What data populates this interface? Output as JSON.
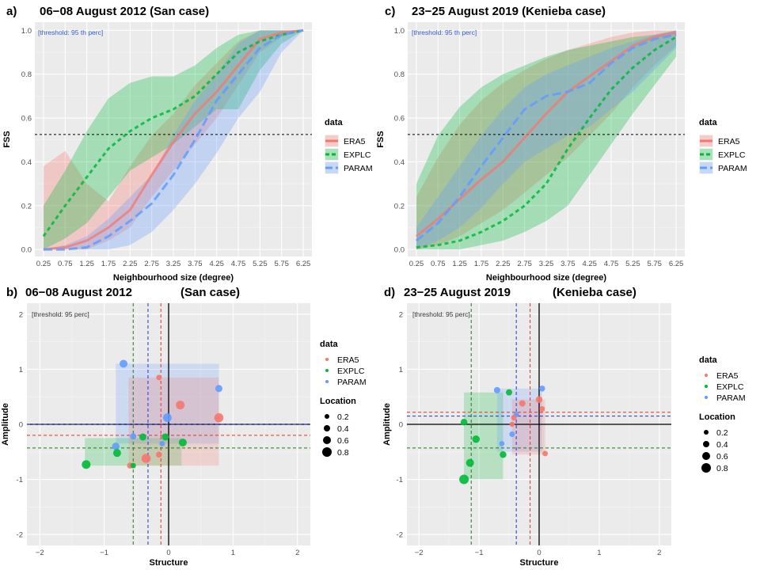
{
  "colors": {
    "ERA5": "#F8766D",
    "EXPLC": "#00BA38",
    "PARAM": "#619CFF",
    "panel": "#EBEBEB",
    "grid": "#ffffff",
    "threshold_text": "#3a5fcd"
  },
  "legend": {
    "title": "data",
    "items": [
      "ERA5",
      "EXPLC",
      "PARAM"
    ],
    "size_title": "Location",
    "size_labels": [
      "0.2",
      "0.4",
      "0.6",
      "0.8"
    ]
  },
  "panels": {
    "a": {
      "label": "a)",
      "title": "06−08 August 2012 (San case)"
    },
    "c": {
      "label": "c)",
      "title": "23−25 August 2019 (Kenieba case)"
    },
    "b": {
      "label": "b)",
      "title": "06−08 August 2012",
      "subtitle": "(San case)"
    },
    "d": {
      "label": "d)",
      "title": "23−25 August 2019",
      "subtitle": "(Kenieba case)"
    }
  },
  "chart_data": [
    {
      "id": "a",
      "type": "line",
      "xlabel": "Neighbourhood size (degree)",
      "ylabel": "FSS",
      "annotation": "[threshold:  95 th perc]",
      "ylim": [
        0,
        1
      ],
      "threshold_line": 0.525,
      "categories": [
        "0.25",
        "0.75",
        "1.25",
        "1.75",
        "2.25",
        "2.75",
        "3.25",
        "3.75",
        "4.25",
        "4.75",
        "5.25",
        "5.75",
        "6.25"
      ],
      "y_ticks": [
        "0.0",
        "0.2",
        "0.4",
        "0.6",
        "0.8",
        "1.0"
      ],
      "series": [
        {
          "name": "ERA5",
          "values": [
            0.0,
            0.01,
            0.04,
            0.1,
            0.18,
            0.34,
            0.49,
            0.62,
            0.72,
            0.84,
            0.96,
            0.99,
            1.0
          ],
          "lower": [
            0.0,
            0.0,
            0.0,
            0.04,
            0.1,
            0.24,
            0.36,
            0.48,
            0.6,
            0.75,
            0.9,
            0.97,
            1.0
          ],
          "upper": [
            0.38,
            0.45,
            0.3,
            0.22,
            0.38,
            0.52,
            0.62,
            0.75,
            0.85,
            0.95,
            1.0,
            1.0,
            1.0
          ]
        },
        {
          "name": "EXPLC",
          "values": [
            0.06,
            0.2,
            0.33,
            0.46,
            0.54,
            0.6,
            0.64,
            0.7,
            0.8,
            0.9,
            0.95,
            0.98,
            1.0
          ],
          "lower": [
            0.0,
            0.05,
            0.12,
            0.24,
            0.36,
            0.42,
            0.48,
            0.56,
            0.64,
            0.64,
            0.82,
            0.94,
            1.0
          ],
          "upper": [
            0.2,
            0.36,
            0.54,
            0.69,
            0.76,
            0.79,
            0.79,
            0.84,
            0.92,
            0.98,
            1.0,
            1.0,
            1.0
          ]
        },
        {
          "name": "PARAM",
          "values": [
            0.0,
            0.0,
            0.01,
            0.06,
            0.13,
            0.21,
            0.34,
            0.5,
            0.68,
            0.8,
            0.92,
            0.98,
            1.0
          ],
          "lower": [
            0.0,
            0.0,
            0.0,
            0.0,
            0.02,
            0.08,
            0.18,
            0.3,
            0.44,
            0.6,
            0.72,
            0.9,
            1.0
          ],
          "upper": [
            0.0,
            0.02,
            0.06,
            0.14,
            0.24,
            0.34,
            0.52,
            0.68,
            0.8,
            0.94,
            1.0,
            1.0,
            1.0
          ]
        }
      ]
    },
    {
      "id": "c",
      "type": "line",
      "xlabel": "Neighbourhood size (degree)",
      "ylabel": "FSS",
      "annotation": "[threshold:  95 th perc]",
      "ylim": [
        0,
        1
      ],
      "threshold_line": 0.525,
      "categories": [
        "0.25",
        "0.75",
        "1.25",
        "1.75",
        "2.25",
        "2.75",
        "3.25",
        "3.75",
        "4.25",
        "4.75",
        "5.25",
        "5.75",
        "6.25"
      ],
      "y_ticks": [
        "0.0",
        "0.2",
        "0.4",
        "0.6",
        "0.8",
        "1.0"
      ],
      "series": [
        {
          "name": "ERA5",
          "values": [
            0.06,
            0.14,
            0.23,
            0.32,
            0.4,
            0.51,
            0.62,
            0.72,
            0.79,
            0.86,
            0.93,
            0.97,
            0.99
          ],
          "lower": [
            0.0,
            0.02,
            0.06,
            0.12,
            0.18,
            0.26,
            0.34,
            0.42,
            0.52,
            0.62,
            0.74,
            0.84,
            0.93
          ],
          "upper": [
            0.24,
            0.42,
            0.57,
            0.68,
            0.76,
            0.82,
            0.87,
            0.91,
            0.94,
            0.97,
            0.99,
            1.0,
            1.0
          ]
        },
        {
          "name": "EXPLC",
          "values": [
            0.01,
            0.02,
            0.04,
            0.08,
            0.13,
            0.2,
            0.3,
            0.46,
            0.6,
            0.73,
            0.83,
            0.91,
            0.97
          ],
          "lower": [
            0.0,
            0.0,
            0.0,
            0.02,
            0.04,
            0.08,
            0.13,
            0.2,
            0.34,
            0.48,
            0.62,
            0.75,
            0.88
          ],
          "upper": [
            0.3,
            0.52,
            0.65,
            0.74,
            0.8,
            0.84,
            0.88,
            0.91,
            0.93,
            0.95,
            0.97,
            0.98,
            1.0
          ]
        },
        {
          "name": "PARAM",
          "values": [
            0.04,
            0.12,
            0.24,
            0.38,
            0.51,
            0.64,
            0.7,
            0.72,
            0.76,
            0.85,
            0.92,
            0.96,
            0.98
          ],
          "lower": [
            0.0,
            0.04,
            0.1,
            0.19,
            0.3,
            0.4,
            0.46,
            0.52,
            0.56,
            0.64,
            0.72,
            0.82,
            0.92
          ],
          "upper": [
            0.1,
            0.24,
            0.38,
            0.52,
            0.64,
            0.74,
            0.8,
            0.84,
            0.88,
            0.92,
            0.95,
            0.98,
            1.0
          ]
        }
      ]
    },
    {
      "id": "b",
      "type": "scatter",
      "xlabel": "Structure",
      "ylabel": "Amplitude",
      "annotation": "[threshold:  95 perc]",
      "xlim": [
        -2.2,
        2.2
      ],
      "ylim": [
        -2.2,
        2.2
      ],
      "x_ticks": [
        -2,
        -1,
        0,
        1,
        2
      ],
      "y_ticks": [
        -2,
        -1,
        0,
        1,
        2
      ],
      "mean_x": {
        "ERA5": -0.12,
        "EXPLC": -0.55,
        "PARAM": -0.32
      },
      "mean_y": {
        "ERA5": -0.2,
        "EXPLC": -0.43,
        "PARAM": 0.0
      },
      "boxes": [
        {
          "name": "PARAM",
          "x0": -0.82,
          "x1": 0.78,
          "y0": -0.35,
          "y1": 1.1
        },
        {
          "name": "EXPLC",
          "x0": -1.3,
          "x1": 0.2,
          "y0": -0.75,
          "y1": -0.25
        },
        {
          "name": "ERA5",
          "x0": -0.62,
          "x1": 0.78,
          "y0": -0.75,
          "y1": 0.85
        }
      ],
      "points": [
        {
          "series": "PARAM",
          "x": -0.7,
          "y": 1.1,
          "location": 0.6
        },
        {
          "series": "PARAM",
          "x": 0.78,
          "y": 0.65,
          "location": 0.5
        },
        {
          "series": "PARAM",
          "x": -0.02,
          "y": 0.12,
          "location": 0.7
        },
        {
          "series": "PARAM",
          "x": -0.82,
          "y": -0.4,
          "location": 0.55
        },
        {
          "series": "PARAM",
          "x": -0.55,
          "y": -0.22,
          "location": 0.4
        },
        {
          "series": "PARAM",
          "x": -0.1,
          "y": -0.35,
          "location": 0.3
        },
        {
          "series": "ERA5",
          "x": -0.15,
          "y": 0.85,
          "location": 0.3
        },
        {
          "series": "ERA5",
          "x": 0.18,
          "y": 0.35,
          "location": 0.7
        },
        {
          "series": "ERA5",
          "x": 0.78,
          "y": 0.12,
          "location": 0.75
        },
        {
          "series": "ERA5",
          "x": -0.6,
          "y": -0.75,
          "location": 0.35
        },
        {
          "series": "ERA5",
          "x": -0.15,
          "y": -0.55,
          "location": 0.35
        },
        {
          "series": "ERA5",
          "x": -0.35,
          "y": -0.62,
          "location": 0.75
        },
        {
          "series": "EXPLC",
          "x": -1.28,
          "y": -0.73,
          "location": 0.7
        },
        {
          "series": "EXPLC",
          "x": -0.8,
          "y": -0.52,
          "location": 0.6
        },
        {
          "series": "EXPLC",
          "x": 0.22,
          "y": -0.33,
          "location": 0.6
        },
        {
          "series": "EXPLC",
          "x": -0.4,
          "y": -0.23,
          "location": 0.5
        },
        {
          "series": "EXPLC",
          "x": -0.05,
          "y": -0.23,
          "location": 0.5
        },
        {
          "series": "EXPLC",
          "x": -0.55,
          "y": -0.75,
          "location": 0.3
        }
      ]
    },
    {
      "id": "d",
      "type": "scatter",
      "xlabel": "Structure",
      "ylabel": "Amplitude",
      "annotation": "[threshold:  95 perc]",
      "xlim": [
        -2.2,
        2.2
      ],
      "ylim": [
        -2.2,
        2.2
      ],
      "x_ticks": [
        -2,
        -1,
        0,
        1,
        2
      ],
      "y_ticks": [
        -2,
        -1,
        0,
        1,
        2
      ],
      "mean_x": {
        "ERA5": -0.15,
        "EXPLC": -1.13,
        "PARAM": -0.38
      },
      "mean_y": {
        "ERA5": 0.22,
        "EXPLC": -0.43,
        "PARAM": 0.15
      },
      "boxes": [
        {
          "name": "EXPLC",
          "x0": -1.25,
          "x1": -0.6,
          "y0": -1.0,
          "y1": 0.58
        },
        {
          "name": "PARAM",
          "x0": -0.7,
          "x1": 0.05,
          "y0": -0.5,
          "y1": 0.65
        },
        {
          "name": "ERA5",
          "x0": -0.45,
          "x1": 0.1,
          "y0": -0.55,
          "y1": 0.45
        }
      ],
      "points": [
        {
          "series": "PARAM",
          "x": -0.7,
          "y": 0.62,
          "location": 0.4
        },
        {
          "series": "PARAM",
          "x": 0.05,
          "y": 0.65,
          "location": 0.35
        },
        {
          "series": "PARAM",
          "x": -0.38,
          "y": 0.18,
          "location": 0.3
        },
        {
          "series": "PARAM",
          "x": -0.45,
          "y": -0.18,
          "location": 0.3
        },
        {
          "series": "PARAM",
          "x": -0.62,
          "y": -0.35,
          "location": 0.25
        },
        {
          "series": "ERA5",
          "x": 0.0,
          "y": 0.45,
          "location": 0.45
        },
        {
          "series": "ERA5",
          "x": 0.05,
          "y": 0.28,
          "location": 0.3
        },
        {
          "series": "ERA5",
          "x": -0.28,
          "y": 0.38,
          "location": 0.4
        },
        {
          "series": "ERA5",
          "x": -0.42,
          "y": 0.12,
          "location": 0.3
        },
        {
          "series": "ERA5",
          "x": -0.45,
          "y": 0.0,
          "location": 0.25
        },
        {
          "series": "ERA5",
          "x": 0.1,
          "y": -0.53,
          "location": 0.3
        },
        {
          "series": "EXPLC",
          "x": -0.5,
          "y": 0.58,
          "location": 0.4
        },
        {
          "series": "EXPLC",
          "x": -1.25,
          "y": 0.04,
          "location": 0.45
        },
        {
          "series": "EXPLC",
          "x": -1.05,
          "y": -0.27,
          "location": 0.55
        },
        {
          "series": "EXPLC",
          "x": -0.6,
          "y": -0.55,
          "location": 0.45
        },
        {
          "series": "EXPLC",
          "x": -1.15,
          "y": -0.7,
          "location": 0.6
        },
        {
          "series": "EXPLC",
          "x": -1.25,
          "y": -1.0,
          "location": 0.8
        }
      ]
    }
  ]
}
